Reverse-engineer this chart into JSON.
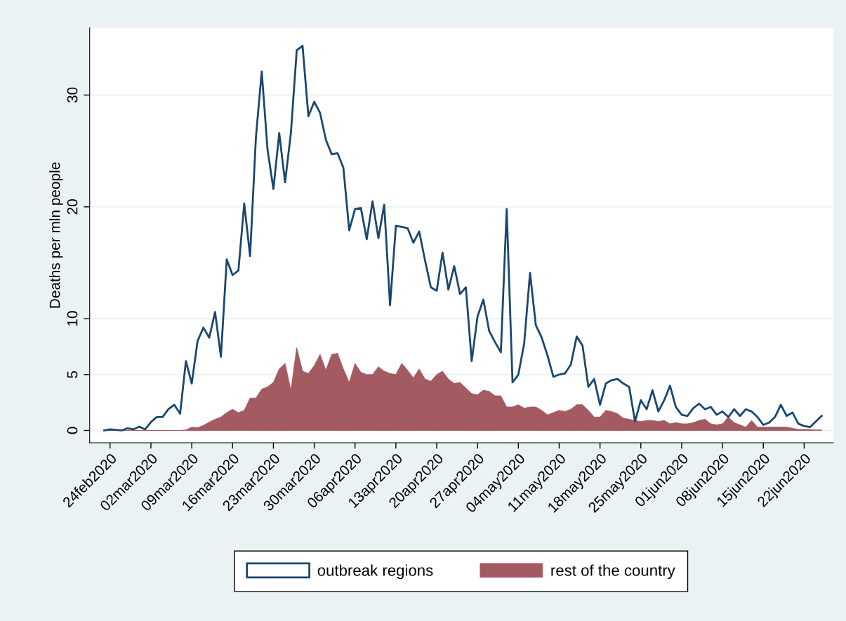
{
  "chart_data": {
    "type": "line",
    "ylabel": "Deaths per mln people",
    "x": [
      "2020-02-23",
      "2020-02-24",
      "2020-02-25",
      "2020-02-26",
      "2020-02-27",
      "2020-02-28",
      "2020-02-29",
      "2020-03-01",
      "2020-03-02",
      "2020-03-03",
      "2020-03-04",
      "2020-03-05",
      "2020-03-06",
      "2020-03-07",
      "2020-03-08",
      "2020-03-09",
      "2020-03-10",
      "2020-03-11",
      "2020-03-12",
      "2020-03-13",
      "2020-03-14",
      "2020-03-15",
      "2020-03-16",
      "2020-03-17",
      "2020-03-18",
      "2020-03-19",
      "2020-03-20",
      "2020-03-21",
      "2020-03-22",
      "2020-03-23",
      "2020-03-24",
      "2020-03-25",
      "2020-03-26",
      "2020-03-27",
      "2020-03-28",
      "2020-03-29",
      "2020-03-30",
      "2020-03-31",
      "2020-04-01",
      "2020-04-02",
      "2020-04-03",
      "2020-04-04",
      "2020-04-05",
      "2020-04-06",
      "2020-04-07",
      "2020-04-08",
      "2020-04-09",
      "2020-04-10",
      "2020-04-11",
      "2020-04-12",
      "2020-04-13",
      "2020-04-14",
      "2020-04-15",
      "2020-04-16",
      "2020-04-17",
      "2020-04-18",
      "2020-04-19",
      "2020-04-20",
      "2020-04-21",
      "2020-04-22",
      "2020-04-23",
      "2020-04-24",
      "2020-04-25",
      "2020-04-26",
      "2020-04-27",
      "2020-04-28",
      "2020-04-29",
      "2020-04-30",
      "2020-05-01",
      "2020-05-02",
      "2020-05-03",
      "2020-05-04",
      "2020-05-05",
      "2020-05-06",
      "2020-05-07",
      "2020-05-08",
      "2020-05-09",
      "2020-05-10",
      "2020-05-11",
      "2020-05-12",
      "2020-05-13",
      "2020-05-14",
      "2020-05-15",
      "2020-05-16",
      "2020-05-17",
      "2020-05-18",
      "2020-05-19",
      "2020-05-20",
      "2020-05-21",
      "2020-05-22",
      "2020-05-23",
      "2020-05-24",
      "2020-05-25",
      "2020-05-26",
      "2020-05-27",
      "2020-05-28",
      "2020-05-29",
      "2020-05-30",
      "2020-05-31",
      "2020-06-01",
      "2020-06-02",
      "2020-06-03",
      "2020-06-04",
      "2020-06-05",
      "2020-06-06",
      "2020-06-07",
      "2020-06-08",
      "2020-06-09",
      "2020-06-10",
      "2020-06-11",
      "2020-06-12",
      "2020-06-13",
      "2020-06-14",
      "2020-06-15",
      "2020-06-16",
      "2020-06-17",
      "2020-06-18",
      "2020-06-19",
      "2020-06-20",
      "2020-06-21",
      "2020-06-22",
      "2020-06-23",
      "2020-06-24",
      "2020-06-25"
    ],
    "series": [
      {
        "name": "outbreak regions",
        "color": "#1a476f",
        "values": [
          0,
          0.1,
          0.05,
          0,
          0.2,
          0.1,
          0.35,
          0.1,
          0.75,
          1.2,
          1.2,
          1.9,
          2.3,
          1.5,
          6.2,
          4.2,
          8.0,
          9.2,
          8.3,
          10.6,
          6.6,
          15.3,
          13.9,
          14.3,
          20.3,
          15.6,
          26.2,
          32.1,
          25.1,
          21.6,
          26.6,
          22.2,
          26.6,
          34.0,
          34.4,
          28.1,
          29.4,
          28.4,
          26.0,
          24.7,
          24.8,
          23.5,
          17.9,
          19.8,
          19.9,
          17.1,
          20.5,
          17.2,
          20.2,
          11.2,
          18.3,
          18.2,
          18.1,
          16.8,
          17.8,
          15.2,
          12.8,
          12.5,
          15.9,
          12.6,
          14.7,
          12.2,
          12.8,
          6.2,
          10.2,
          11.7,
          8.9,
          7.9,
          7.0,
          19.8,
          4.3,
          5.0,
          7.8,
          14.1,
          9.4,
          8.3,
          6.7,
          4.8,
          5.0,
          5.1,
          5.9,
          8.4,
          7.6,
          3.9,
          4.6,
          2.3,
          4.2,
          4.5,
          4.6,
          4.2,
          3.9,
          0.8,
          2.7,
          1.9,
          3.6,
          1.7,
          2.7,
          4.0,
          2.1,
          1.4,
          1.3,
          2.0,
          2.4,
          1.9,
          2.1,
          1.4,
          1.7,
          1.2,
          1.9,
          1.3,
          1.9,
          1.7,
          1.2,
          0.5,
          0.7,
          1.2,
          2.3,
          1.3,
          1.6,
          0.6,
          0.4,
          0.3,
          0.8,
          1.3
        ]
      },
      {
        "name": "rest of the country",
        "type": "area",
        "color": "#a35a60",
        "values": [
          0,
          0,
          0,
          0,
          0,
          0,
          0,
          0,
          0,
          0,
          0,
          0,
          0,
          0,
          0.05,
          0.3,
          0.25,
          0.45,
          0.75,
          1.0,
          1.2,
          1.6,
          1.9,
          1.6,
          1.8,
          2.9,
          2.9,
          3.7,
          3.9,
          4.3,
          5.5,
          6.0,
          3.6,
          7.4,
          5.3,
          5.1,
          5.8,
          6.8,
          5.4,
          6.8,
          6.9,
          5.5,
          4.3,
          6.0,
          5.2,
          5.0,
          5.0,
          5.7,
          5.3,
          5.1,
          5.0,
          6.0,
          5.4,
          4.7,
          5.5,
          4.6,
          4.4,
          5.0,
          5.3,
          4.6,
          4.2,
          4.3,
          3.8,
          3.3,
          3.2,
          3.6,
          3.5,
          3.1,
          3.1,
          2.1,
          2.1,
          2.3,
          2.0,
          2.1,
          2.1,
          1.8,
          1.4,
          1.6,
          1.8,
          1.7,
          1.9,
          2.3,
          2.3,
          1.8,
          1.2,
          1.2,
          1.8,
          1.7,
          1.5,
          1.1,
          1.0,
          0.9,
          0.8,
          0.9,
          0.9,
          0.8,
          0.9,
          0.6,
          0.7,
          0.6,
          0.6,
          0.7,
          0.9,
          1.0,
          0.6,
          0.5,
          0.6,
          1.2,
          0.7,
          0.5,
          0.3,
          0.9,
          0.3,
          0.3,
          0.3,
          0.3,
          0.3,
          0.3,
          0.2,
          0.1,
          0.1,
          0.1,
          0.05,
          0.05
        ]
      }
    ],
    "xlim": [
      "2020-02-20T12:00",
      "2020-06-27"
    ],
    "xticks": [
      {
        "value": "2020-02-24",
        "label": "24feb2020"
      },
      {
        "value": "2020-03-02",
        "label": "02mar2020"
      },
      {
        "value": "2020-03-09",
        "label": "09mar2020"
      },
      {
        "value": "2020-03-16",
        "label": "16mar2020"
      },
      {
        "value": "2020-03-23",
        "label": "23mar2020"
      },
      {
        "value": "2020-03-30",
        "label": "30mar2020"
      },
      {
        "value": "2020-04-06",
        "label": "06apr2020"
      },
      {
        "value": "2020-04-13",
        "label": "13apr2020"
      },
      {
        "value": "2020-04-20",
        "label": "20apr2020"
      },
      {
        "value": "2020-04-27",
        "label": "27apr2020"
      },
      {
        "value": "2020-05-04",
        "label": "04may2020"
      },
      {
        "value": "2020-05-11",
        "label": "11may2020"
      },
      {
        "value": "2020-05-18",
        "label": "18may2020"
      },
      {
        "value": "2020-05-25",
        "label": "25may2020"
      },
      {
        "value": "2020-06-01",
        "label": "01jun2020"
      },
      {
        "value": "2020-06-08",
        "label": "08jun2020"
      },
      {
        "value": "2020-06-15",
        "label": "15jun2020"
      },
      {
        "value": "2020-06-22",
        "label": "22jun2020"
      }
    ],
    "ylim": [
      -1.1,
      36
    ],
    "yticks": [
      0,
      5,
      10,
      20,
      30
    ],
    "grid": "y",
    "legend": "bottom",
    "marker": "none",
    "line_style": "solid"
  }
}
